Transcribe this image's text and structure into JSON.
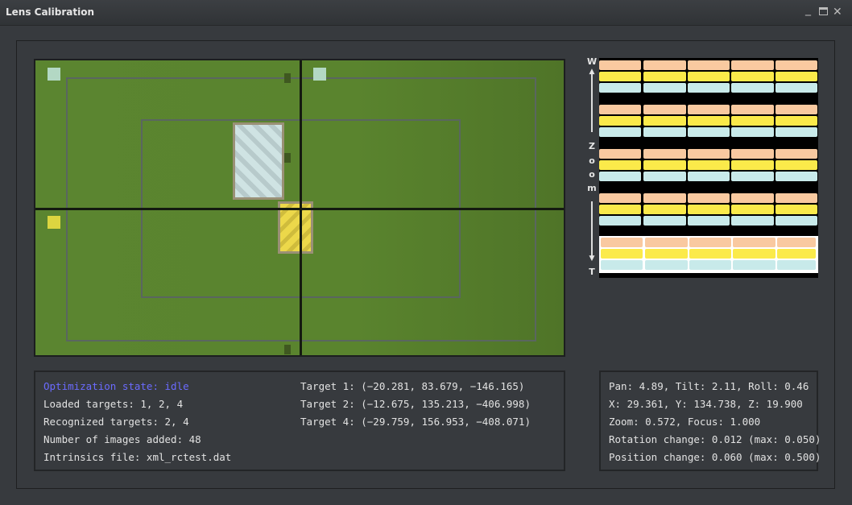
{
  "window": {
    "title": "Lens Calibration",
    "minimize_icon": "minimize-icon",
    "maximize_icon": "maximize-icon",
    "close_icon": "close-icon"
  },
  "zoom_bar": {
    "top_label": "W",
    "bottom_label": "T",
    "word": [
      "Z",
      "o",
      "o",
      "m"
    ],
    "levels": 5,
    "selected_level": 5,
    "colors": {
      "row1": "#f9c9a0",
      "row2": "#fbea4a",
      "row3": "#c8eaea"
    }
  },
  "status": {
    "optimization_state": "Optimization state: idle",
    "loaded_targets": "Loaded targets: 1, 2, 4",
    "recognized_targets": "Recognized targets: 2, 4",
    "images_added": "Number of images added: 48",
    "intrinsics_file": "Intrinsics file: xml_rctest.dat",
    "accent": "#6b6bff"
  },
  "targets": [
    "Target 1: (−20.281, 83.679, −146.165)",
    "Target 2: (−12.675, 135.213, −406.998)",
    "Target 4: (−29.759, 156.953, −408.071)"
  ],
  "pose": {
    "pan_tilt_roll": "Pan: 4.89, Tilt: 2.11, Roll: 0.46",
    "xyz": "X: 29.361, Y: 134.738, Z: 19.900",
    "zoom_focus": "Zoom: 0.572, Focus: 1.000",
    "rotation_change": "Rotation change: 0.012 (max: 0.050)",
    "position_change": "Position change: 0.060 (max: 0.500)"
  }
}
